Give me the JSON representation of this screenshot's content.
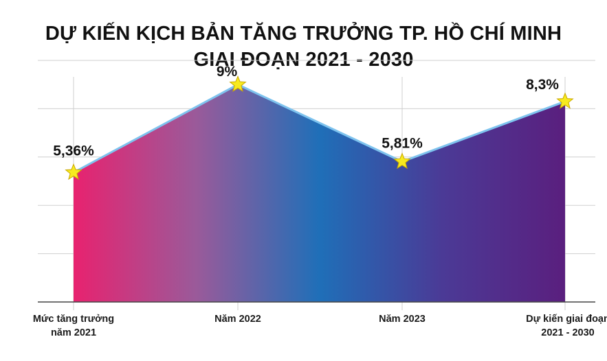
{
  "title_line1": "DỰ KIẾN KỊCH BẢN TĂNG TRƯỞNG TP. HỒ CHÍ MINH",
  "title_line2": "GIAI ĐOẠN 2021 - 2030",
  "chart_data": {
    "type": "area",
    "categories": [
      [
        "Mức tăng trưởng",
        "năm 2021"
      ],
      [
        "Năm 2022"
      ],
      [
        "Năm 2023"
      ],
      [
        "Dự kiến giai đoạn",
        "2021 - 2030"
      ]
    ],
    "values": [
      5.36,
      9,
      5.81,
      8.3
    ],
    "data_labels": [
      "5,36%",
      "9%",
      "5,81%",
      "8,3%"
    ],
    "ylim": [
      0,
      10
    ],
    "grid": true,
    "marker": "star",
    "colors": {
      "gradient": [
        "#e8226f",
        "#9a5a9a",
        "#1f6fb8",
        "#4b3a96",
        "#5a1f7e"
      ],
      "line": "#7ec3ee",
      "marker_fill": "#f7ea1f",
      "marker_stroke": "#c9a800",
      "grid": "#cfcfcf",
      "axis": "#444444"
    }
  }
}
